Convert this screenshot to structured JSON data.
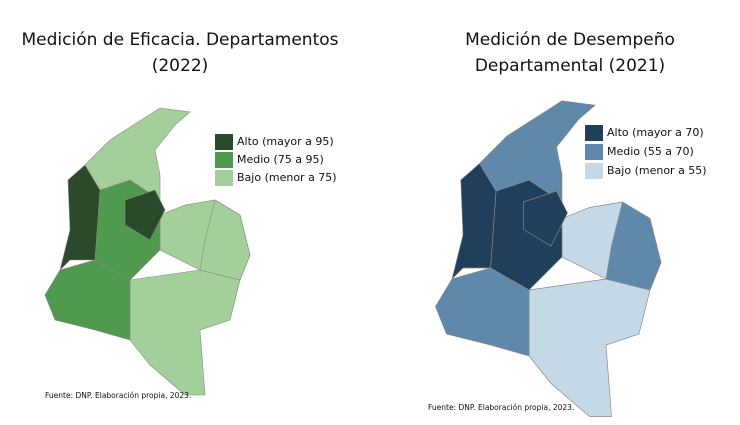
{
  "maps": [
    {
      "title_lines": [
        "Medición de Eficacia. Departamentos",
        "(2022)"
      ],
      "legend": [
        {
          "label": "Alto (mayor a 95)",
          "color": "#2b4a2b"
        },
        {
          "label": "Medio (75 a 95)",
          "color": "#4f9a4f"
        },
        {
          "label": "Bajo (menor a 75)",
          "color": "#a3cf9a"
        }
      ],
      "source": "Fuente: DNP. Elaboración propia, 2023."
    },
    {
      "title_lines": [
        "Medición de Desempeño",
        "Departamental (2021)"
      ],
      "legend": [
        {
          "label": "Alto (mayor a 70)",
          "color": "#1f3f5a"
        },
        {
          "label": "Medio (55 a 70)",
          "color": "#5f88aa"
        },
        {
          "label": "Bajo (menor a 55)",
          "color": "#c5d8e6"
        }
      ],
      "source": "Fuente: DNP. Elaboración propia, 2023."
    }
  ]
}
